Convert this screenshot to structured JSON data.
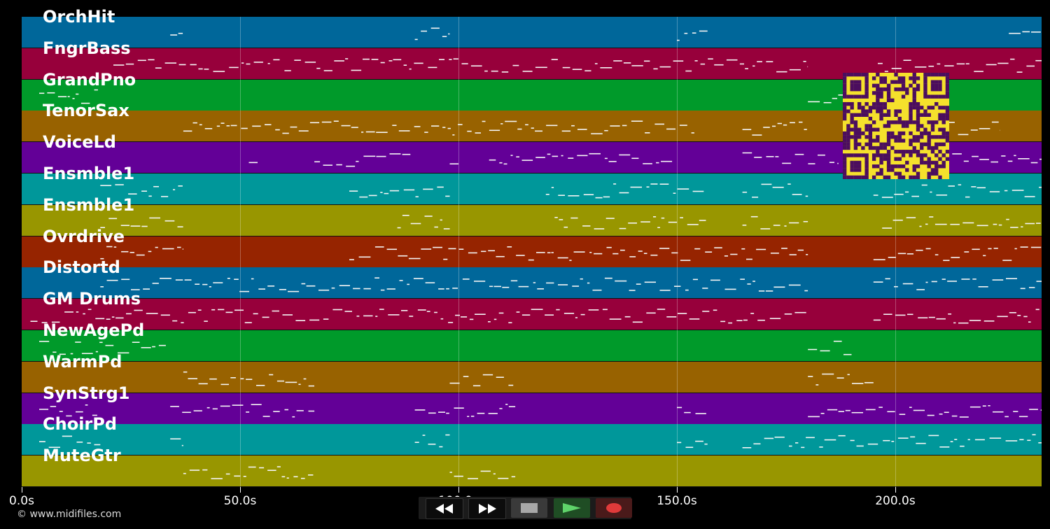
{
  "tracks": [
    {
      "name": "OrchHit",
      "color": "#00679a"
    },
    {
      "name": "FngrBass",
      "color": "#97003b"
    },
    {
      "name": "GrandPno",
      "color": "#009a2a"
    },
    {
      "name": "TenorSax",
      "color": "#986200"
    },
    {
      "name": "VoiceLd",
      "color": "#630097"
    },
    {
      "name": "Ensmble1",
      "color": "#00979a"
    },
    {
      "name": "Ensmble1",
      "color": "#989600"
    },
    {
      "name": "Ovrdrive",
      "color": "#962400"
    },
    {
      "name": "Distortd",
      "color": "#00679a"
    },
    {
      "name": "GM Drums",
      "color": "#97003b"
    },
    {
      "name": "NewAgePd",
      "color": "#009a2a"
    },
    {
      "name": "WarmPd",
      "color": "#986200"
    },
    {
      "name": "SynStrg1",
      "color": "#630097"
    },
    {
      "name": "ChoirPd",
      "color": "#00979a"
    },
    {
      "name": "MuteGtr",
      "color": "#989600"
    }
  ],
  "timeline": {
    "max_seconds": 233.5,
    "ticks": [
      {
        "value": 0,
        "label": "0.0s"
      },
      {
        "value": 50,
        "label": "50.0s"
      },
      {
        "value": 100,
        "label": "100.0s"
      },
      {
        "value": 150,
        "label": "150.0s"
      },
      {
        "value": 200,
        "label": "200.0s"
      }
    ]
  },
  "note_segments": [
    [
      [
        34,
        37
      ],
      [
        90,
        98
      ],
      [
        150,
        157
      ],
      [
        226,
        234
      ]
    ],
    [
      [
        21,
        180
      ],
      [
        196,
        234
      ]
    ],
    [
      [
        4,
        18
      ],
      [
        180,
        190
      ]
    ],
    [
      [
        37,
        154
      ],
      [
        165,
        180
      ],
      [
        212,
        224
      ]
    ],
    [
      [
        52,
        54
      ],
      [
        67,
        89
      ],
      [
        98,
        100
      ],
      [
        107,
        150
      ],
      [
        165,
        187
      ],
      [
        195,
        234
      ]
    ],
    [
      [
        18,
        37
      ],
      [
        75,
        98
      ],
      [
        120,
        157
      ],
      [
        165,
        180
      ],
      [
        195,
        234
      ]
    ],
    [
      [
        18,
        37
      ],
      [
        86,
        98
      ],
      [
        122,
        157
      ],
      [
        165,
        180
      ],
      [
        197,
        234
      ]
    ],
    [
      [
        18,
        37
      ],
      [
        75,
        180
      ],
      [
        195,
        234
      ]
    ],
    [
      [
        18,
        180
      ],
      [
        195,
        234
      ]
    ],
    [
      [
        2,
        180
      ],
      [
        195,
        234
      ]
    ],
    [
      [
        4,
        33
      ],
      [
        180,
        190
      ]
    ],
    [
      [
        37,
        67
      ],
      [
        98,
        113
      ],
      [
        180,
        195
      ]
    ],
    [
      [
        4,
        18
      ],
      [
        34,
        67
      ],
      [
        90,
        113
      ],
      [
        150,
        157
      ],
      [
        180,
        234
      ]
    ],
    [
      [
        4,
        18
      ],
      [
        34,
        37
      ],
      [
        90,
        98
      ],
      [
        150,
        157
      ],
      [
        165,
        234
      ]
    ],
    [
      [
        37,
        67
      ],
      [
        98,
        113
      ]
    ]
  ],
  "transport": {
    "rewind_icon": "rewind-icon",
    "forward_icon": "fast-forward-icon",
    "stop_icon": "stop-icon",
    "play_icon": "play-icon",
    "record_icon": "record-icon"
  },
  "credit": "© www.midifiles.com"
}
